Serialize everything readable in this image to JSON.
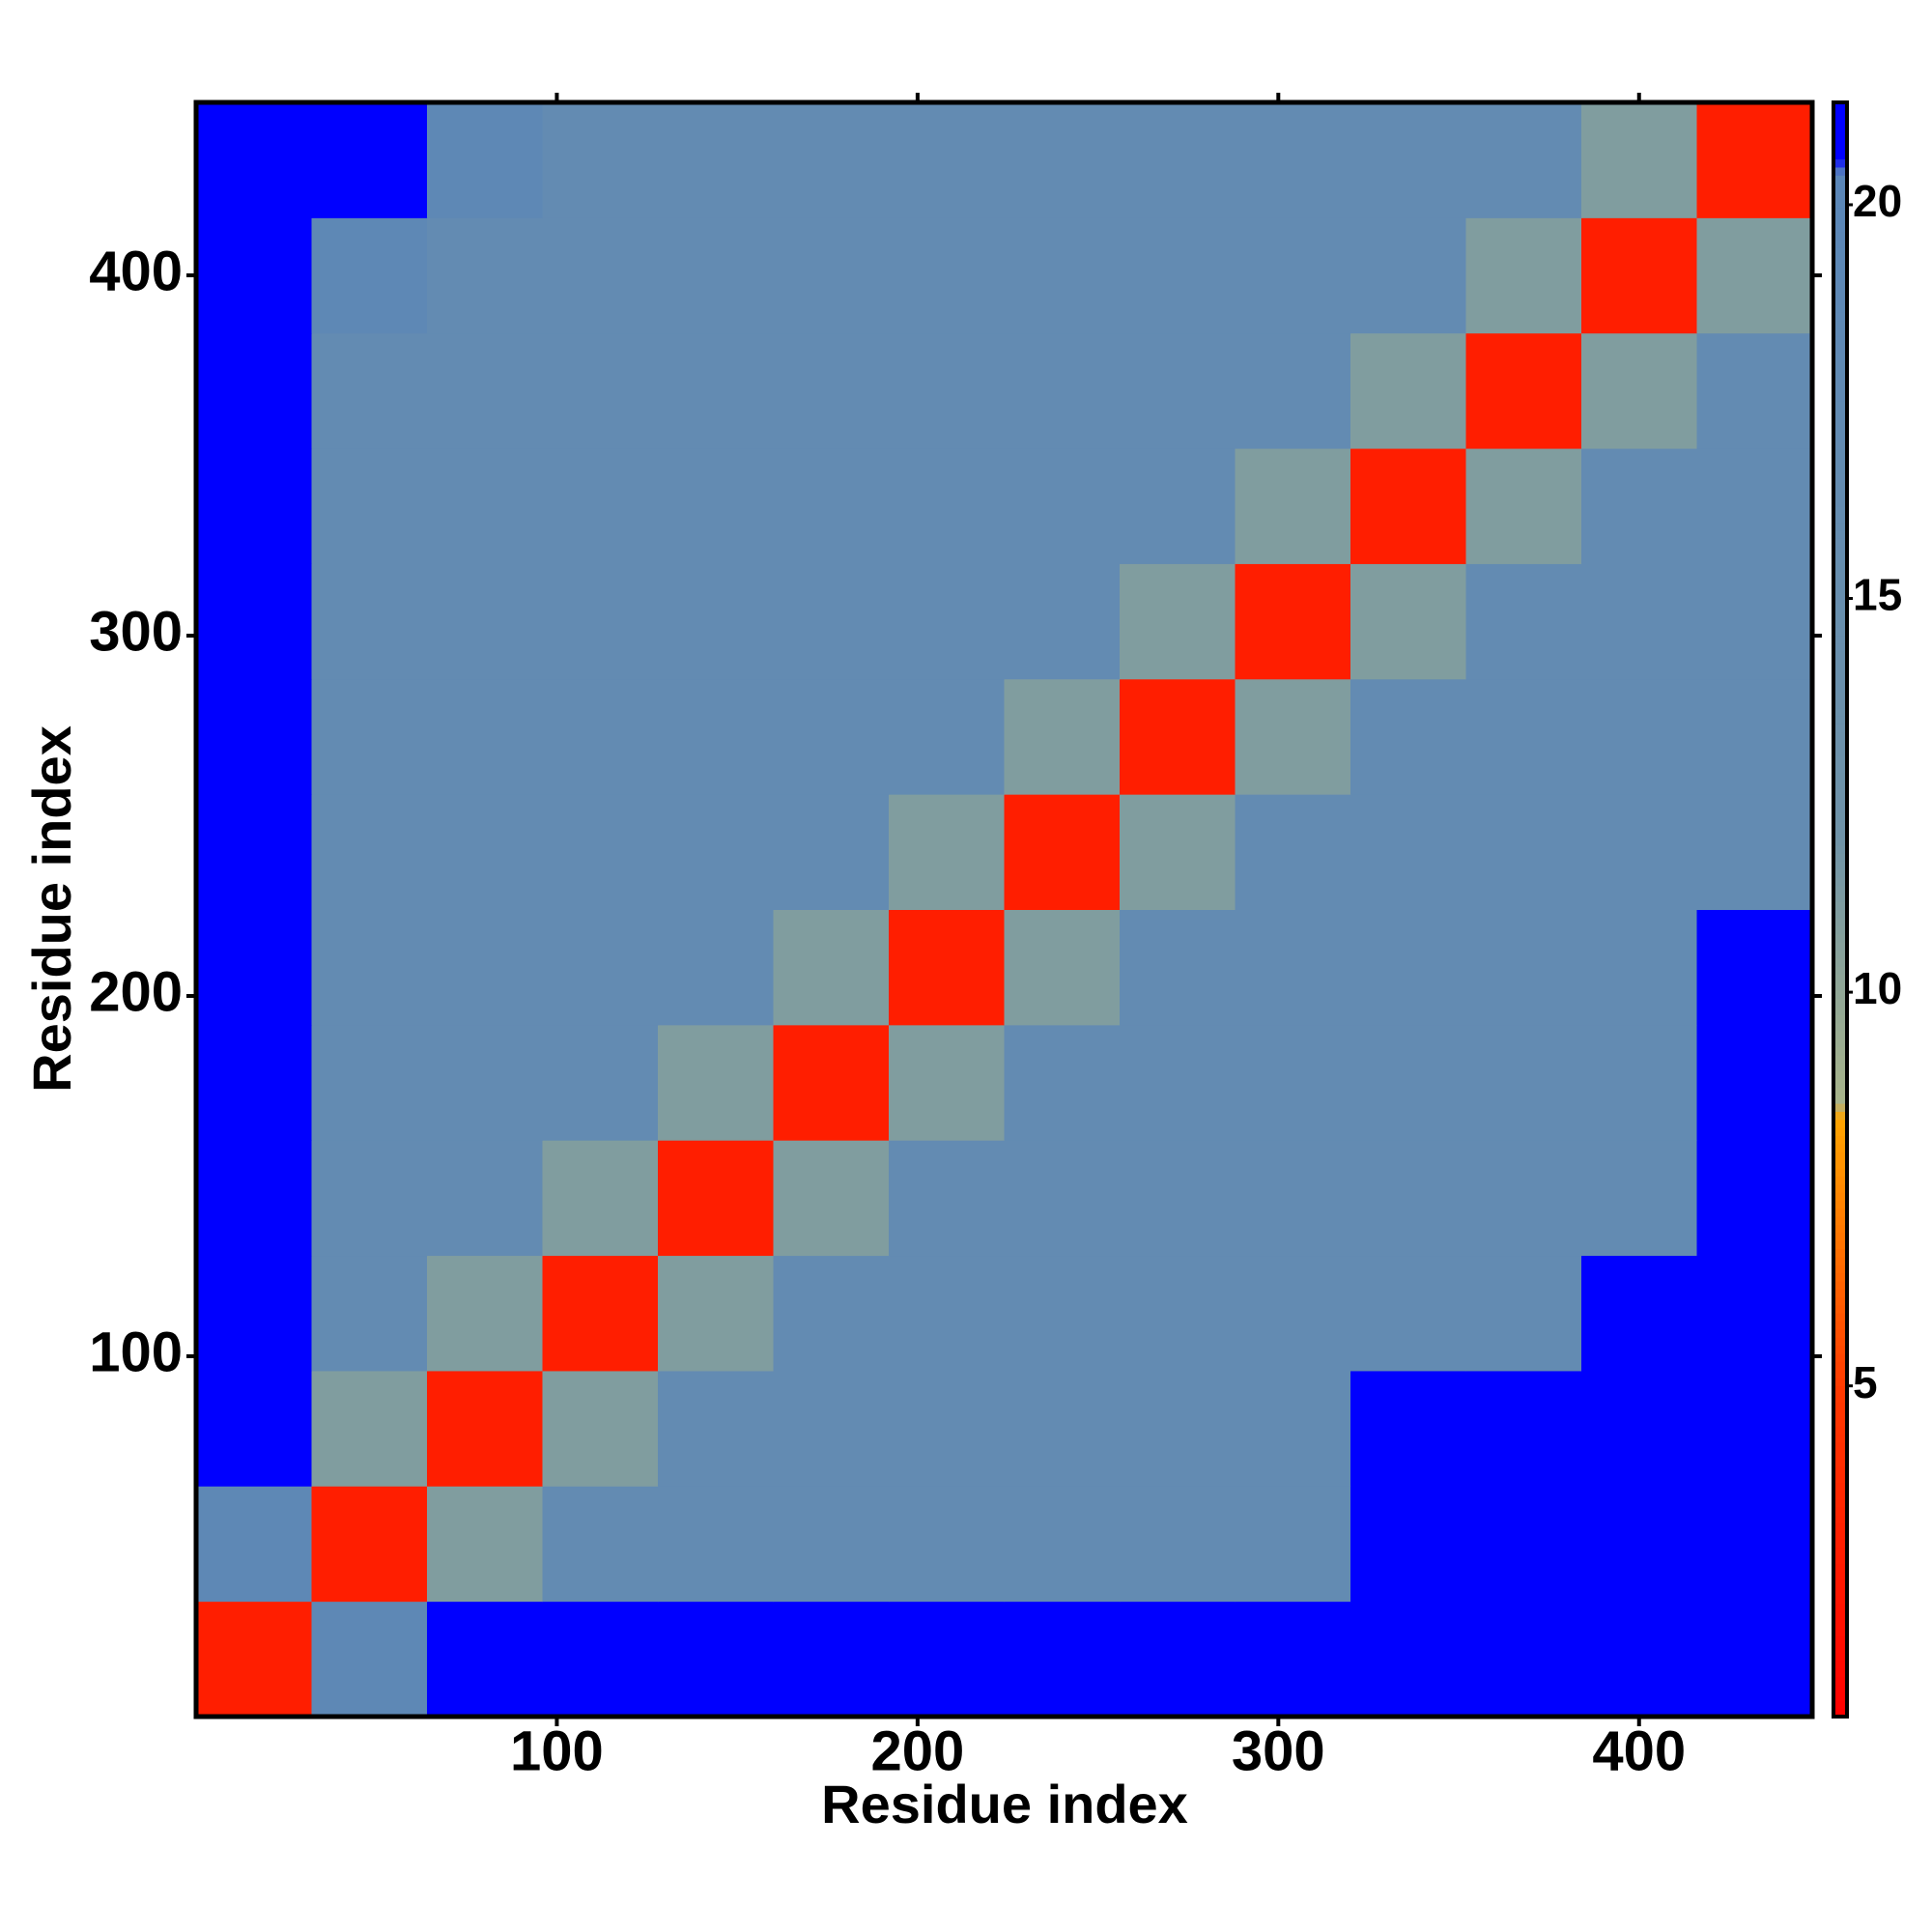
{
  "chart_data": {
    "type": "heatmap",
    "x_label": "Residue index",
    "y_label": "Residue index",
    "x": [
      16,
      48,
      80,
      112,
      144,
      176,
      208,
      240,
      272,
      304,
      336,
      368,
      400,
      432
    ],
    "y": [
      16,
      48,
      80,
      112,
      144,
      176,
      208,
      240,
      272,
      304,
      336,
      368,
      400,
      432
    ],
    "z": [
      [
        3,
        19,
        21,
        21,
        21,
        21,
        21,
        21,
        21,
        21,
        21,
        21,
        21,
        21
      ],
      [
        19,
        3,
        11,
        17,
        17,
        17,
        17,
        17,
        17,
        17,
        21,
        21,
        21,
        21
      ],
      [
        21,
        11,
        3,
        11,
        17,
        17,
        17,
        17,
        17,
        17,
        21,
        21,
        21,
        21
      ],
      [
        21,
        17,
        11,
        3,
        11,
        17,
        17,
        17,
        17,
        17,
        17,
        17,
        21,
        21
      ],
      [
        21,
        17,
        17,
        11,
        3,
        11,
        17,
        17,
        17,
        17,
        17,
        17,
        17,
        21
      ],
      [
        21,
        17,
        17,
        17,
        11,
        3,
        11,
        17,
        17,
        17,
        17,
        17,
        17,
        21
      ],
      [
        21,
        17,
        17,
        17,
        17,
        11,
        3,
        11,
        17,
        17,
        17,
        17,
        17,
        21
      ],
      [
        21,
        17,
        17,
        17,
        17,
        17,
        11,
        3,
        11,
        17,
        17,
        17,
        17,
        17
      ],
      [
        21,
        17,
        17,
        17,
        17,
        17,
        17,
        11,
        3,
        11,
        17,
        17,
        17,
        17
      ],
      [
        21,
        17,
        17,
        17,
        17,
        17,
        17,
        17,
        11,
        3,
        11,
        17,
        17,
        17
      ],
      [
        21,
        17,
        17,
        17,
        17,
        17,
        17,
        17,
        17,
        11,
        3,
        11,
        17,
        17
      ],
      [
        21,
        17,
        17,
        17,
        17,
        17,
        17,
        17,
        17,
        17,
        11,
        3,
        11,
        17
      ],
      [
        21,
        19,
        17,
        17,
        17,
        17,
        17,
        17,
        17,
        17,
        17,
        11,
        3,
        11
      ],
      [
        21,
        21,
        19,
        17,
        17,
        17,
        17,
        17,
        17,
        17,
        17,
        17,
        11,
        3
      ]
    ],
    "xlim": [
      0,
      448
    ],
    "ylim": [
      0,
      448
    ],
    "xticks": [
      100,
      200,
      300,
      400
    ],
    "yticks": [
      100,
      200,
      300,
      400
    ],
    "zlim": [
      0.8,
      21.3
    ],
    "zticks": [
      5,
      10,
      15,
      20
    ],
    "colorscale": [
      {
        "value": 0.8,
        "color": "#ff0000"
      },
      {
        "value": 5,
        "color": "#ff3a00"
      },
      {
        "value": 8.4,
        "color": "#ffa500"
      },
      {
        "value": 8.6,
        "color": "#a8b48a"
      },
      {
        "value": 12,
        "color": "#6f93a8"
      },
      {
        "value": 20.4,
        "color": "#5a86b8"
      },
      {
        "value": 20.6,
        "color": "#0000ff"
      },
      {
        "value": 21.3,
        "color": "#0000ff"
      }
    ]
  }
}
